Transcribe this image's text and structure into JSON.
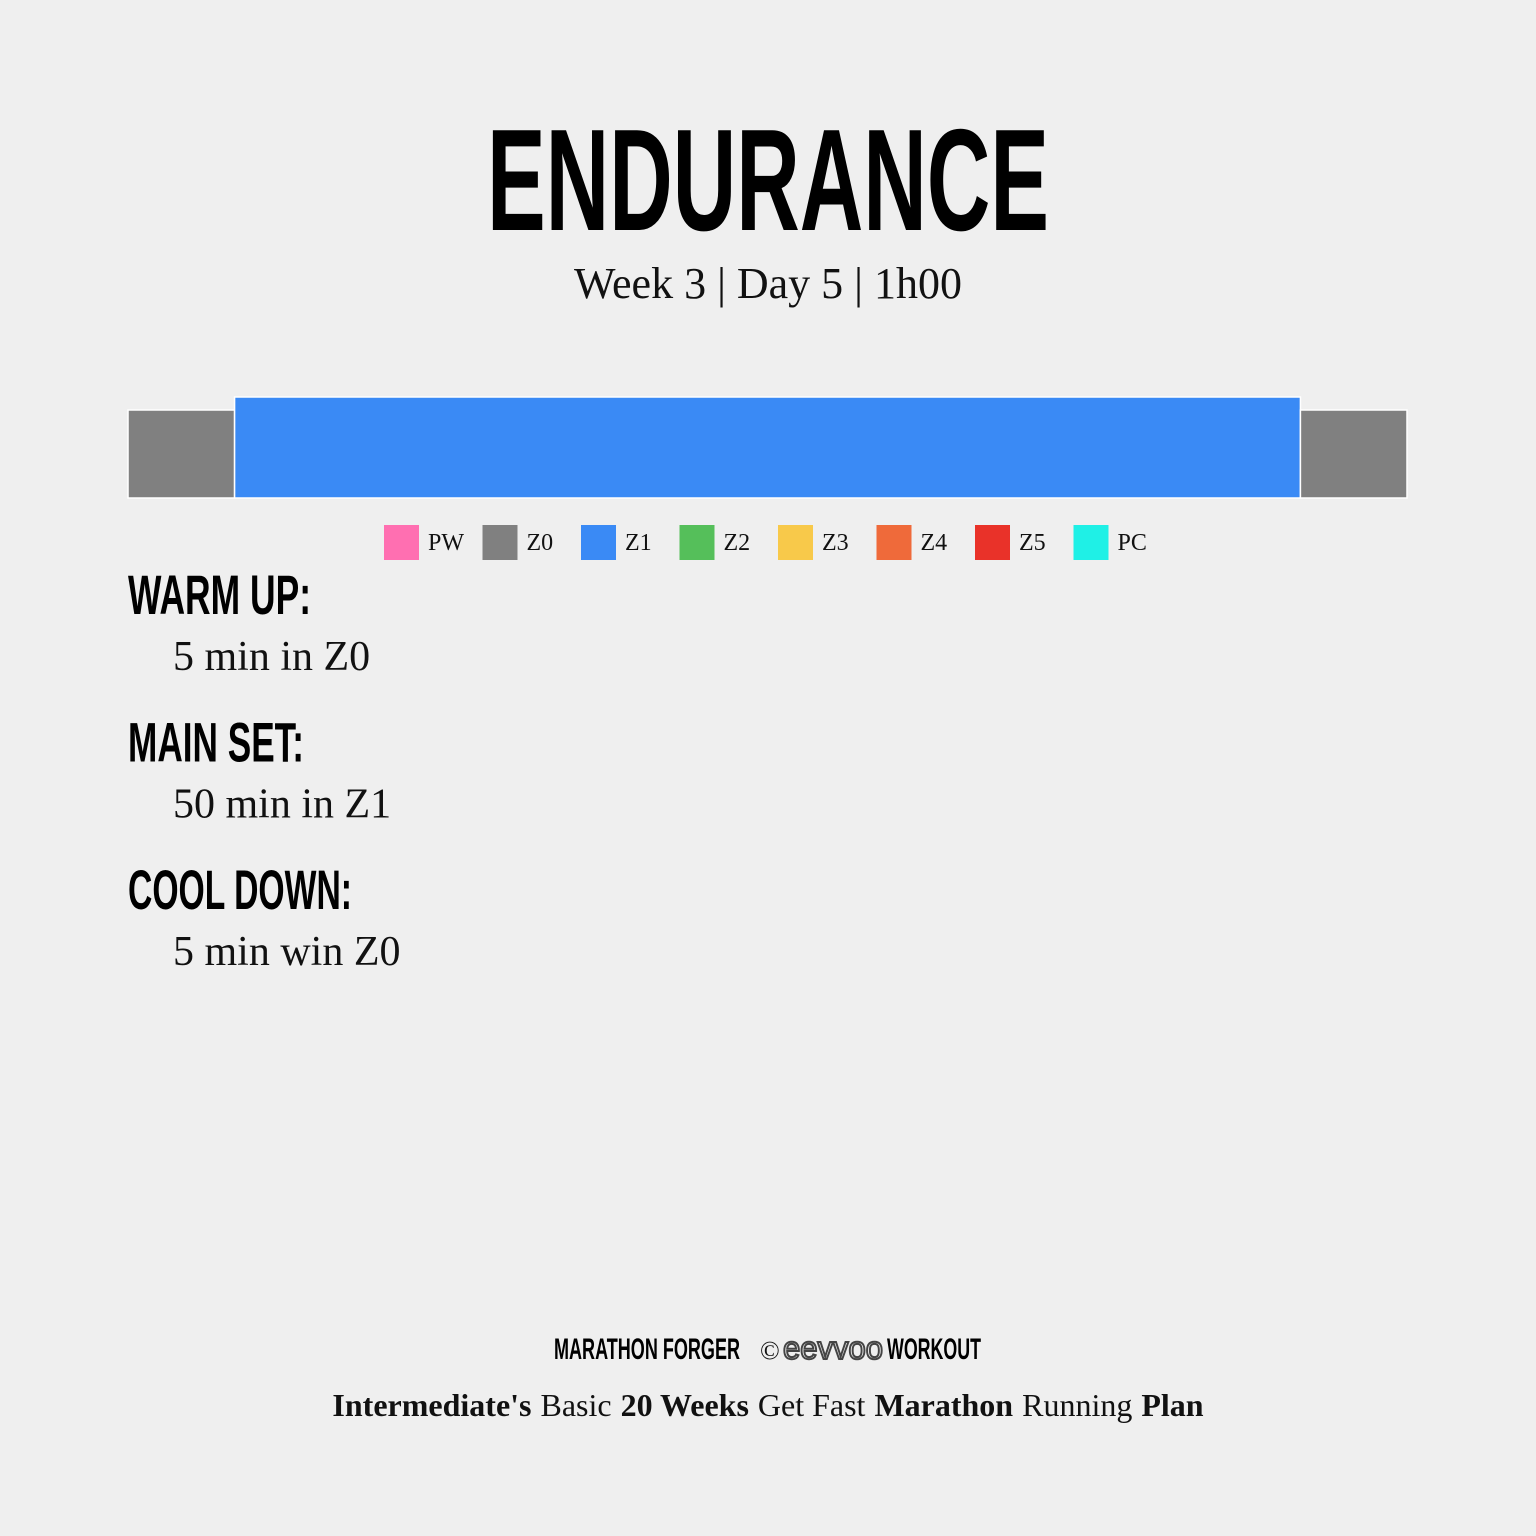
{
  "header": {
    "title": "ENDURANCE",
    "subtitle": "Week 3 | Day 5 | 1h00"
  },
  "profile": {
    "segments": [
      {
        "zone": "Z0",
        "minutes": 5
      },
      {
        "zone": "Z1",
        "minutes": 50
      },
      {
        "zone": "Z0",
        "minutes": 5
      }
    ]
  },
  "legend": [
    {
      "label": "PW",
      "color": "#ff6fb1"
    },
    {
      "label": "Z0",
      "color": "#808080"
    },
    {
      "label": "Z1",
      "color": "#3a8af5"
    },
    {
      "label": "Z2",
      "color": "#55bf5a"
    },
    {
      "label": "Z3",
      "color": "#f8c94a"
    },
    {
      "label": "Z4",
      "color": "#ef6a3a"
    },
    {
      "label": "Z5",
      "color": "#e93229"
    },
    {
      "label": "PC",
      "color": "#1ff0e6"
    }
  ],
  "sections": [
    {
      "heading": "WARM UP:",
      "step": "5 min in Z0"
    },
    {
      "heading": "MAIN SET:",
      "step": "50 min in Z1"
    },
    {
      "heading": "COOL DOWN:",
      "step": "5 min win Z0"
    }
  ],
  "footer": {
    "brand": "MARATHON FORGER",
    "symbol": "©",
    "logo": "eevvoo",
    "logo_suffix": "WORKOUT",
    "plan": [
      {
        "text": "Intermediate's",
        "bold": true
      },
      {
        "text": "Basic",
        "bold": false
      },
      {
        "text": "20 Weeks",
        "bold": true
      },
      {
        "text": "Get Fast",
        "bold": false
      },
      {
        "text": "Marathon",
        "bold": true
      },
      {
        "text": "Running",
        "bold": false
      },
      {
        "text": "Plan",
        "bold": true
      }
    ]
  }
}
